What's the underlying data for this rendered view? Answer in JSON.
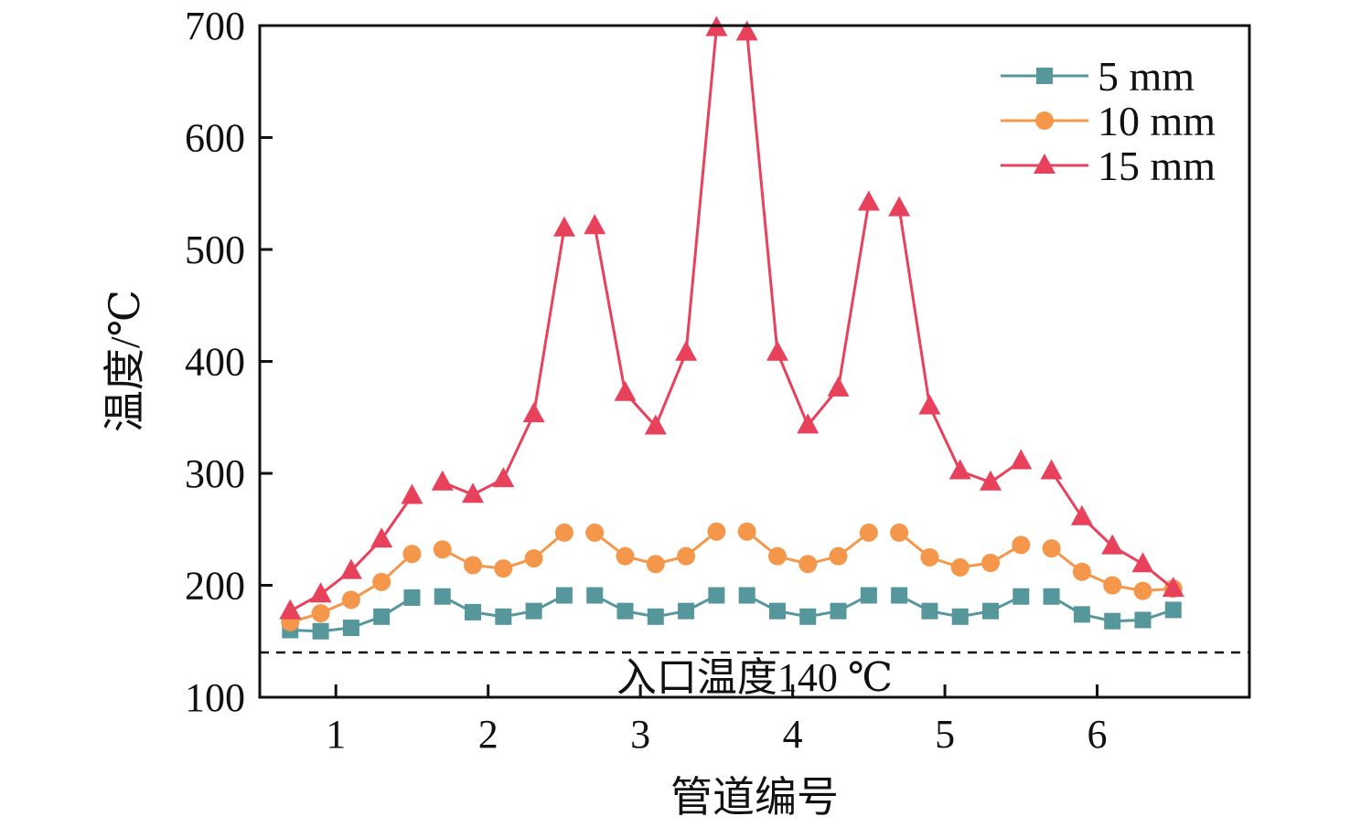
{
  "chart_data": {
    "type": "line",
    "title": "",
    "xlabel": "管道编号",
    "ylabel": "温度/℃",
    "xlim": [
      0.5,
      7.0
    ],
    "ylim": [
      100,
      700
    ],
    "xticks": [
      1,
      2,
      3,
      4,
      5,
      6
    ],
    "yticks": [
      100,
      200,
      300,
      400,
      500,
      600,
      700
    ],
    "legend_position": "top-right",
    "x": [
      0.7,
      0.9,
      1.1,
      1.3,
      1.5,
      1.7,
      1.9,
      2.1,
      2.3,
      2.5,
      2.7,
      2.9,
      3.1,
      3.3,
      3.5,
      3.7,
      3.9,
      4.1,
      4.3,
      4.5,
      4.7,
      4.9,
      5.1,
      5.3,
      5.5,
      5.7,
      5.9,
      6.1,
      6.3,
      6.5
    ],
    "points_per_pipe": 5,
    "series": [
      {
        "name": "5 mm",
        "color": "#55979b",
        "marker": "square",
        "values": [
          160,
          159,
          162,
          172,
          189,
          190,
          176,
          172,
          177,
          191,
          191,
          177,
          172,
          177,
          191,
          191,
          177,
          172,
          177,
          191,
          191,
          177,
          172,
          177,
          190,
          190,
          174,
          168,
          169,
          178
        ]
      },
      {
        "name": "10 mm",
        "color": "#f5974b",
        "marker": "circle",
        "values": [
          167,
          175,
          187,
          203,
          228,
          232,
          218,
          215,
          224,
          247,
          247,
          226,
          219,
          226,
          248,
          248,
          226,
          219,
          226,
          247,
          247,
          225,
          216,
          220,
          236,
          233,
          212,
          200,
          195,
          197
        ]
      },
      {
        "name": "15 mm",
        "color": "#e8415c",
        "marker": "triangle",
        "values": [
          177,
          192,
          213,
          241,
          280,
          292,
          281,
          295,
          353,
          519,
          521,
          372,
          342,
          408,
          698,
          694,
          408,
          343,
          376,
          542,
          537,
          360,
          302,
          292,
          311,
          302,
          261,
          235,
          219,
          197
        ]
      }
    ],
    "reference_line": {
      "value": 140,
      "label": "入口温度140 ℃"
    }
  }
}
